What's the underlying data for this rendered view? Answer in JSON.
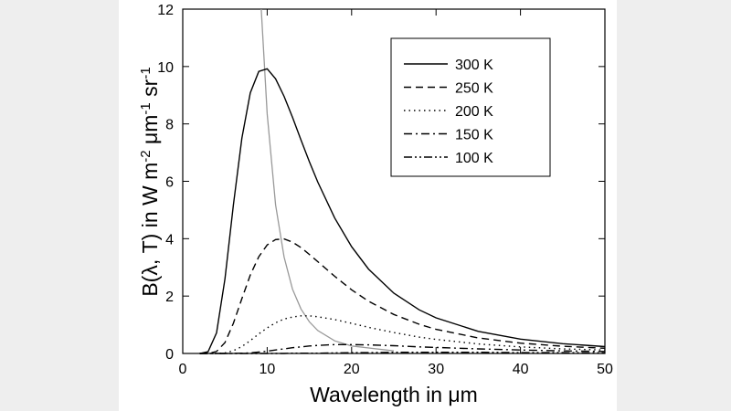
{
  "chart_data": {
    "type": "line",
    "xlabel": "Wavelength in μm",
    "ylabel": [
      "B(λ, T) in W m",
      "-2",
      " μm",
      "-1",
      " sr",
      "-1"
    ],
    "x": [
      2,
      3,
      4,
      5,
      6,
      7,
      8,
      9,
      10,
      11,
      12,
      13,
      14,
      15,
      16,
      18,
      20,
      22,
      25,
      28,
      30,
      35,
      40,
      45,
      50
    ],
    "series": [
      {
        "name": "300 K",
        "color": "#000000",
        "dash": "solid",
        "values": [
          0,
          0.06,
          0.72,
          2.6,
          5.17,
          7.5,
          9.08,
          9.83,
          9.92,
          9.57,
          8.96,
          8.23,
          7.44,
          6.68,
          5.97,
          4.72,
          3.72,
          2.94,
          2.1,
          1.52,
          1.24,
          0.77,
          0.5,
          0.34,
          0.24
        ]
      },
      {
        "name": "250 K",
        "color": "#000000",
        "dash": "dash",
        "values": [
          0,
          0,
          0.07,
          0.38,
          1.05,
          1.91,
          2.73,
          3.37,
          3.78,
          3.97,
          3.99,
          3.88,
          3.69,
          3.45,
          3.2,
          2.69,
          2.22,
          1.82,
          1.36,
          1.02,
          0.84,
          0.54,
          0.36,
          0.25,
          0.18
        ]
      },
      {
        "name": "200 K",
        "color": "#000000",
        "dash": "dot",
        "values": [
          0,
          0,
          0,
          0.02,
          0.1,
          0.24,
          0.45,
          0.68,
          0.89,
          1.07,
          1.2,
          1.27,
          1.31,
          1.31,
          1.28,
          1.18,
          1.05,
          0.91,
          0.73,
          0.57,
          0.49,
          0.33,
          0.23,
          0.16,
          0.12
        ]
      },
      {
        "name": "150 K",
        "color": "#000000",
        "dash": "dashdot",
        "values": [
          0,
          0,
          0,
          0,
          0,
          0.01,
          0.02,
          0.05,
          0.08,
          0.12,
          0.16,
          0.2,
          0.23,
          0.26,
          0.28,
          0.31,
          0.31,
          0.3,
          0.27,
          0.23,
          0.21,
          0.16,
          0.12,
          0.09,
          0.07
        ]
      },
      {
        "name": "100 K",
        "color": "#000000",
        "dash": "dashdotdot",
        "values": [
          0,
          0,
          0,
          0,
          0,
          0,
          0,
          0,
          0,
          0,
          0,
          0.01,
          0.01,
          0.01,
          0.01,
          0.02,
          0.03,
          0.03,
          0.04,
          0.04,
          0.04,
          0.04,
          0.03,
          0.03,
          0.02
        ]
      }
    ],
    "locus": {
      "color": "#999999",
      "x": [
        9.3,
        10,
        11,
        12,
        13,
        14,
        15,
        16,
        18,
        20,
        25
      ],
      "values": [
        12,
        8.35,
        5.18,
        3.36,
        2.24,
        1.55,
        1.1,
        0.8,
        0.44,
        0.26,
        0.09
      ]
    },
    "xlim": [
      0,
      50
    ],
    "xticks": [
      0,
      10,
      20,
      30,
      40,
      50
    ],
    "ylim": [
      0,
      12
    ],
    "yticks": [
      0,
      2,
      4,
      6,
      8,
      10,
      12
    ],
    "grid": false,
    "legend": "upper-right"
  }
}
